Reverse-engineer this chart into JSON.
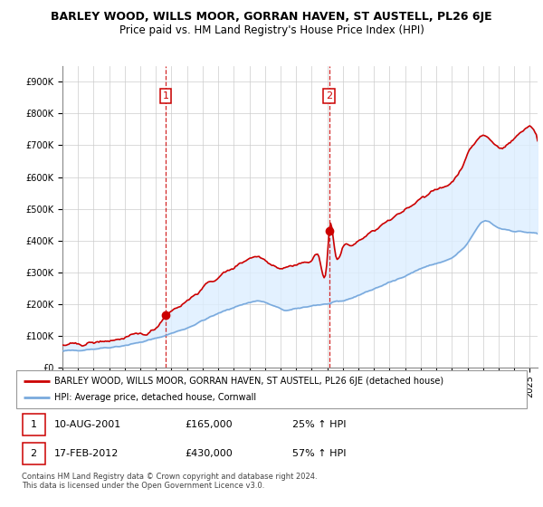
{
  "title": "BARLEY WOOD, WILLS MOOR, GORRAN HAVEN, ST AUSTELL, PL26 6JE",
  "subtitle": "Price paid vs. HM Land Registry's House Price Index (HPI)",
  "ylabel_ticks": [
    "£0",
    "£100K",
    "£200K",
    "£300K",
    "£400K",
    "£500K",
    "£600K",
    "£700K",
    "£800K",
    "£900K"
  ],
  "ytick_values": [
    0,
    100000,
    200000,
    300000,
    400000,
    500000,
    600000,
    700000,
    800000,
    900000
  ],
  "ylim": [
    0,
    950000
  ],
  "xlim_start": 1995.0,
  "xlim_end": 2025.5,
  "vline1_x": 2001.614,
  "vline2_x": 2012.125,
  "marker1_x": 2001.614,
  "marker1_y": 165000,
  "marker2_x": 2012.125,
  "marker2_y": 430000,
  "legend_line1": "BARLEY WOOD, WILLS MOOR, GORRAN HAVEN, ST AUSTELL, PL26 6JE (detached house)",
  "legend_line2": "HPI: Average price, detached house, Cornwall",
  "table_entries": [
    {
      "num": "1",
      "date": "10-AUG-2001",
      "price": "£165,000",
      "pct": "25% ↑ HPI"
    },
    {
      "num": "2",
      "date": "17-FEB-2012",
      "price": "£430,000",
      "pct": "57% ↑ HPI"
    }
  ],
  "footer": "Contains HM Land Registry data © Crown copyright and database right 2024.\nThis data is licensed under the Open Government Licence v3.0.",
  "red_color": "#cc0000",
  "blue_color": "#7aaadd",
  "shade_color": "#ddeeff",
  "vline_color": "#cc0000",
  "grid_color": "#cccccc",
  "title_fontsize": 9,
  "subtitle_fontsize": 8.5,
  "tick_fontsize": 7
}
